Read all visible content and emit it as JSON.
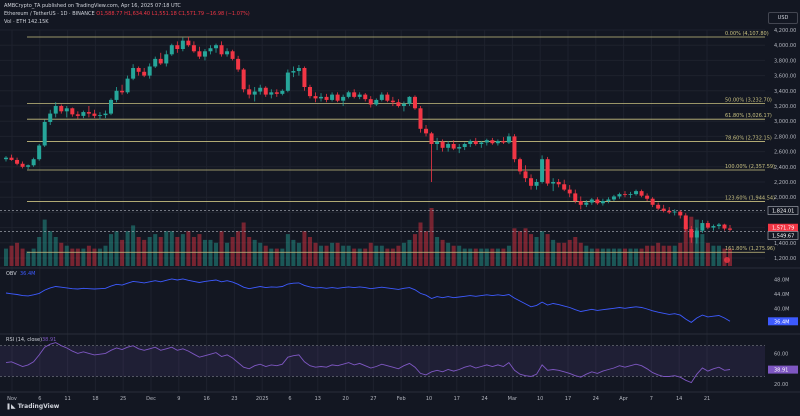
{
  "header": {
    "published": "AMBCrypto_TA published on TradingView.com, Apr 16, 2025 07:18 UTC",
    "symbol": "Ethereum / TetherUS · 1D · BINANCE",
    "ohlc": "O1,588.77 H1,634.40 L1,551.18 C1,571.79 −16.98 (−1.07%)",
    "volume": "Vol · ETH  142.15K"
  },
  "currency": "USD",
  "colors": {
    "background": "#131722",
    "up": "#26a69a",
    "down": "#f23645",
    "fib": "#c8c080",
    "obv": "#3d5afe",
    "rsi": "#7e57c2"
  },
  "logo": "TradingView",
  "chart_data": [
    {
      "type": "candlestick",
      "yticks": [
        "4,200.00",
        "4,000.00",
        "3,800.00",
        "3,600.00",
        "3,400.00",
        "3,200.00",
        "3,000.00",
        "2,800.00",
        "2,600.00",
        "2,400.00",
        "2,200.00",
        "2,000.00",
        "1,800.00",
        "1,600.00",
        "1,400.00",
        "1,200.00"
      ],
      "ylim": [
        1200,
        4200
      ],
      "xticks": [
        "Nov",
        "6",
        "11",
        "18",
        "25",
        "Dec",
        "9",
        "16",
        "23",
        "2025",
        "6",
        "13",
        "20",
        "27",
        "Feb",
        "10",
        "17",
        "24",
        "Mar",
        "10",
        "17",
        "24",
        "Apr",
        "7",
        "14",
        "21"
      ],
      "fib_levels": [
        {
          "label": "0.00% (4,107.80)",
          "value": 4107.8
        },
        {
          "label": "50.00% (3,232.70)",
          "value": 3232.7
        },
        {
          "label": "61.80% (3,026.17)",
          "value": 3026.17
        },
        {
          "label": "78.60% (2,732.15)",
          "value": 2732.15
        },
        {
          "label": "100.00% (2,357.59)",
          "value": 2357.59
        },
        {
          "label": "123.60% (1,944.54)",
          "value": 1944.54
        },
        {
          "label": "161.80% (1,275.96)",
          "value": 1275.96
        }
      ],
      "price_labels": [
        {
          "text": "1,824.01",
          "value": 1824.01
        },
        {
          "text": "1,571.79",
          "value": 1571.79
        },
        {
          "text": "1,549.67",
          "value": 1549.67
        }
      ],
      "ohlc_per_day": [
        [
          2500,
          2540,
          2470,
          2520
        ],
        [
          2520,
          2560,
          2480,
          2490
        ],
        [
          2490,
          2520,
          2420,
          2440
        ],
        [
          2440,
          2470,
          2380,
          2400
        ],
        [
          2400,
          2430,
          2370,
          2420
        ],
        [
          2420,
          2520,
          2400,
          2500
        ],
        [
          2500,
          2700,
          2480,
          2680
        ],
        [
          2680,
          3020,
          2660,
          2990
        ],
        [
          2990,
          3150,
          2950,
          3100
        ],
        [
          3100,
          3250,
          3050,
          3200
        ],
        [
          3200,
          3220,
          3100,
          3130
        ],
        [
          3130,
          3200,
          3050,
          3170
        ],
        [
          3170,
          3180,
          3060,
          3090
        ],
        [
          3090,
          3130,
          3030,
          3070
        ],
        [
          3070,
          3140,
          3040,
          3120
        ],
        [
          3120,
          3200,
          3050,
          3100
        ],
        [
          3100,
          3150,
          3040,
          3070
        ],
        [
          3070,
          3120,
          3020,
          3080
        ],
        [
          3080,
          3140,
          3040,
          3100
        ],
        [
          3100,
          3300,
          3080,
          3280
        ],
        [
          3280,
          3450,
          3250,
          3400
        ],
        [
          3400,
          3480,
          3350,
          3380
        ],
        [
          3380,
          3600,
          3360,
          3560
        ],
        [
          3560,
          3750,
          3540,
          3700
        ],
        [
          3700,
          3720,
          3600,
          3650
        ],
        [
          3650,
          3700,
          3580,
          3600
        ],
        [
          3600,
          3760,
          3560,
          3720
        ],
        [
          3720,
          3850,
          3700,
          3820
        ],
        [
          3820,
          3900,
          3740,
          3760
        ],
        [
          3760,
          3930,
          3720,
          3880
        ],
        [
          3880,
          4020,
          3860,
          4000
        ],
        [
          4000,
          4050,
          3900,
          3950
        ],
        [
          3950,
          4100,
          3920,
          4060
        ],
        [
          4060,
          4108,
          3980,
          4000
        ],
        [
          4000,
          4050,
          3900,
          3920
        ],
        [
          3920,
          3980,
          3820,
          3850
        ],
        [
          3850,
          3950,
          3800,
          3920
        ],
        [
          3920,
          4000,
          3880,
          3960
        ],
        [
          3960,
          4020,
          3900,
          4000
        ],
        [
          4000,
          4050,
          3850,
          3880
        ],
        [
          3880,
          3960,
          3850,
          3920
        ],
        [
          3920,
          3940,
          3800,
          3820
        ],
        [
          3820,
          3860,
          3650,
          3680
        ],
        [
          3680,
          3700,
          3380,
          3420
        ],
        [
          3420,
          3480,
          3300,
          3350
        ],
        [
          3350,
          3450,
          3260,
          3390
        ],
        [
          3390,
          3480,
          3350,
          3440
        ],
        [
          3440,
          3460,
          3320,
          3350
        ],
        [
          3350,
          3420,
          3300,
          3380
        ],
        [
          3380,
          3420,
          3320,
          3360
        ],
        [
          3360,
          3420,
          3340,
          3400
        ],
        [
          3400,
          3680,
          3380,
          3640
        ],
        [
          3640,
          3720,
          3580,
          3660
        ],
        [
          3660,
          3740,
          3600,
          3700
        ],
        [
          3700,
          3720,
          3400,
          3450
        ],
        [
          3450,
          3480,
          3300,
          3330
        ],
        [
          3330,
          3380,
          3250,
          3300
        ],
        [
          3300,
          3370,
          3260,
          3320
        ],
        [
          3320,
          3360,
          3250,
          3280
        ],
        [
          3280,
          3380,
          3260,
          3350
        ],
        [
          3350,
          3380,
          3250,
          3270
        ],
        [
          3270,
          3350,
          3200,
          3320
        ],
        [
          3320,
          3400,
          3300,
          3380
        ],
        [
          3380,
          3420,
          3300,
          3320
        ],
        [
          3320,
          3380,
          3290,
          3350
        ],
        [
          3350,
          3370,
          3260,
          3290
        ],
        [
          3290,
          3330,
          3180,
          3220
        ],
        [
          3220,
          3300,
          3200,
          3280
        ],
        [
          3280,
          3380,
          3260,
          3350
        ],
        [
          3350,
          3380,
          3250,
          3270
        ],
        [
          3270,
          3320,
          3200,
          3250
        ],
        [
          3250,
          3290,
          3180,
          3200
        ],
        [
          3200,
          3260,
          3130,
          3230
        ],
        [
          3230,
          3330,
          3200,
          3320
        ],
        [
          3320,
          3340,
          3150,
          3170
        ],
        [
          3170,
          3200,
          2850,
          2900
        ],
        [
          2900,
          2950,
          2800,
          2840
        ],
        [
          2840,
          2860,
          2200,
          2700
        ],
        [
          2700,
          2780,
          2620,
          2730
        ],
        [
          2730,
          2760,
          2600,
          2650
        ],
        [
          2650,
          2740,
          2600,
          2700
        ],
        [
          2700,
          2750,
          2620,
          2640
        ],
        [
          2640,
          2700,
          2580,
          2660
        ],
        [
          2660,
          2720,
          2620,
          2700
        ],
        [
          2700,
          2760,
          2660,
          2740
        ],
        [
          2740,
          2780,
          2680,
          2700
        ],
        [
          2700,
          2740,
          2650,
          2720
        ],
        [
          2720,
          2770,
          2680,
          2750
        ],
        [
          2750,
          2780,
          2690,
          2710
        ],
        [
          2710,
          2760,
          2680,
          2740
        ],
        [
          2740,
          2790,
          2700,
          2720
        ],
        [
          2720,
          2840,
          2700,
          2800
        ],
        [
          2800,
          2830,
          2460,
          2500
        ],
        [
          2500,
          2520,
          2300,
          2340
        ],
        [
          2340,
          2420,
          2200,
          2250
        ],
        [
          2250,
          2300,
          2100,
          2150
        ],
        [
          2150,
          2240,
          2100,
          2200
        ],
        [
          2200,
          2550,
          2180,
          2500
        ],
        [
          2500,
          2530,
          2150,
          2180
        ],
        [
          2180,
          2250,
          2080,
          2200
        ],
        [
          2200,
          2240,
          2130,
          2170
        ],
        [
          2170,
          2230,
          2080,
          2100
        ],
        [
          2100,
          2160,
          2000,
          2050
        ],
        [
          2050,
          2100,
          1920,
          1950
        ],
        [
          1950,
          2010,
          1840,
          1900
        ],
        [
          1900,
          1960,
          1870,
          1930
        ],
        [
          1930,
          1990,
          1900,
          1970
        ],
        [
          1970,
          2000,
          1900,
          1920
        ],
        [
          1920,
          1980,
          1890,
          1950
        ],
        [
          1950,
          2000,
          1920,
          1970
        ],
        [
          1970,
          2030,
          1950,
          2010
        ],
        [
          2010,
          2060,
          1980,
          2040
        ],
        [
          2040,
          2080,
          2000,
          2030
        ],
        [
          2030,
          2070,
          1990,
          2040
        ],
        [
          2040,
          2100,
          2020,
          2080
        ],
        [
          2080,
          2100,
          2000,
          2020
        ],
        [
          2020,
          2050,
          1950,
          1980
        ],
        [
          1980,
          2000,
          1870,
          1900
        ],
        [
          1900,
          1930,
          1830,
          1850
        ],
        [
          1850,
          1900,
          1800,
          1820
        ],
        [
          1820,
          1870,
          1780,
          1800
        ],
        [
          1800,
          1840,
          1760,
          1810
        ],
        [
          1810,
          1830,
          1720,
          1760
        ],
        [
          1760,
          1790,
          1550,
          1580
        ],
        [
          1580,
          1620,
          1400,
          1470
        ],
        [
          1470,
          1600,
          1390,
          1560
        ],
        [
          1560,
          1700,
          1530,
          1660
        ],
        [
          1660,
          1690,
          1580,
          1600
        ],
        [
          1600,
          1640,
          1560,
          1620
        ],
        [
          1620,
          1660,
          1580,
          1640
        ],
        [
          1640,
          1650,
          1560,
          1588
        ],
        [
          1588,
          1634,
          1551,
          1572
        ]
      ],
      "volume": [
        0.3,
        0.35,
        0.4,
        0.3,
        0.25,
        0.3,
        0.5,
        0.8,
        0.6,
        0.5,
        0.4,
        0.35,
        0.3,
        0.3,
        0.3,
        0.35,
        0.3,
        0.3,
        0.35,
        0.55,
        0.6,
        0.45,
        0.6,
        0.7,
        0.5,
        0.45,
        0.5,
        0.55,
        0.5,
        0.6,
        0.6,
        0.5,
        0.55,
        0.6,
        0.5,
        0.55,
        0.45,
        0.45,
        0.4,
        0.6,
        0.4,
        0.5,
        0.6,
        0.75,
        0.5,
        0.45,
        0.4,
        0.35,
        0.3,
        0.3,
        0.3,
        0.55,
        0.45,
        0.4,
        0.6,
        0.5,
        0.4,
        0.35,
        0.35,
        0.4,
        0.4,
        0.35,
        0.35,
        0.3,
        0.3,
        0.3,
        0.4,
        0.35,
        0.35,
        0.3,
        0.3,
        0.35,
        0.4,
        0.45,
        0.55,
        0.75,
        0.6,
        1.0,
        0.5,
        0.45,
        0.4,
        0.35,
        0.35,
        0.3,
        0.3,
        0.3,
        0.3,
        0.3,
        0.3,
        0.3,
        0.3,
        0.35,
        0.65,
        0.6,
        0.65,
        0.55,
        0.5,
        0.6,
        0.55,
        0.45,
        0.4,
        0.4,
        0.45,
        0.5,
        0.4,
        0.35,
        0.3,
        0.3,
        0.3,
        0.3,
        0.3,
        0.3,
        0.3,
        0.3,
        0.3,
        0.3,
        0.35,
        0.35,
        0.4,
        0.35,
        0.35,
        0.35,
        0.4,
        0.7,
        0.85,
        0.8,
        0.55,
        0.4,
        0.35,
        0.35,
        0.3,
        0.3
      ],
      "volume_label": "142.15K"
    },
    {
      "type": "line",
      "title": "OBV",
      "value_label": "36.4M",
      "yticks": [
        "48.0M",
        "44.0M",
        "40.0M",
        "36.0M"
      ],
      "ylim": [
        34,
        50
      ],
      "values": [
        44.2,
        44.0,
        43.8,
        43.5,
        43.4,
        43.7,
        44.1,
        45.0,
        45.6,
        46.0,
        45.8,
        45.6,
        45.4,
        45.3,
        45.5,
        45.4,
        45.3,
        45.4,
        45.5,
        46.1,
        46.6,
        46.4,
        46.9,
        47.4,
        47.2,
        47.0,
        47.3,
        47.6,
        47.3,
        47.7,
        48.1,
        47.8,
        48.1,
        47.7,
        47.4,
        47.1,
        47.4,
        47.6,
        47.8,
        47.3,
        47.6,
        47.2,
        46.6,
        45.8,
        45.4,
        45.7,
        46.0,
        45.7,
        45.9,
        45.8,
        46.0,
        46.7,
        46.9,
        47.0,
        46.3,
        45.9,
        45.6,
        45.7,
        45.5,
        45.7,
        45.5,
        45.7,
        45.9,
        45.7,
        45.9,
        45.7,
        45.4,
        45.6,
        45.8,
        45.6,
        45.4,
        45.2,
        45.5,
        45.7,
        45.1,
        44.1,
        43.6,
        42.7,
        43.2,
        42.9,
        43.2,
        42.9,
        43.1,
        43.3,
        43.5,
        43.3,
        43.5,
        43.7,
        43.5,
        43.7,
        43.5,
        43.8,
        42.8,
        42.0,
        41.2,
        40.4,
        40.8,
        41.7,
        40.9,
        41.3,
        41.0,
        40.6,
        40.2,
        39.6,
        39.1,
        39.4,
        39.7,
        39.4,
        39.6,
        39.8,
        40.0,
        40.2,
        40.0,
        40.2,
        40.4,
        40.2,
        39.8,
        39.3,
        38.9,
        38.6,
        38.3,
        38.5,
        38.1,
        37.0,
        36.1,
        37.3,
        38.1,
        37.6,
        37.8,
        38.0,
        37.3,
        36.4
      ]
    },
    {
      "type": "line",
      "title": "RSI (14, close)",
      "value_label": "38.91",
      "yticks": [
        "60.00",
        "40.00",
        "20.00"
      ],
      "ylim": [
        15,
        80
      ],
      "bands": [
        70,
        30
      ],
      "values": [
        48,
        49,
        46,
        43,
        45,
        49,
        58,
        68,
        72,
        74,
        70,
        67,
        63,
        60,
        62,
        60,
        58,
        59,
        60,
        64,
        67,
        65,
        68,
        70,
        66,
        64,
        66,
        68,
        64,
        66,
        68,
        64,
        66,
        63,
        59,
        55,
        57,
        59,
        61,
        56,
        58,
        54,
        48,
        42,
        40,
        44,
        46,
        43,
        45,
        44,
        46,
        55,
        57,
        58,
        49,
        44,
        42,
        43,
        42,
        45,
        44,
        46,
        48,
        45,
        47,
        44,
        41,
        43,
        46,
        44,
        42,
        40,
        44,
        47,
        42,
        34,
        32,
        36,
        38,
        36,
        39,
        37,
        39,
        42,
        44,
        41,
        43,
        45,
        43,
        45,
        43,
        48,
        38,
        33,
        31,
        30,
        33,
        45,
        38,
        39,
        38,
        36,
        34,
        31,
        29,
        33,
        36,
        34,
        37,
        39,
        41,
        44,
        42,
        44,
        46,
        44,
        40,
        35,
        32,
        30,
        30,
        31,
        29,
        25,
        22,
        33,
        41,
        37,
        40,
        42,
        38,
        39
      ]
    }
  ]
}
